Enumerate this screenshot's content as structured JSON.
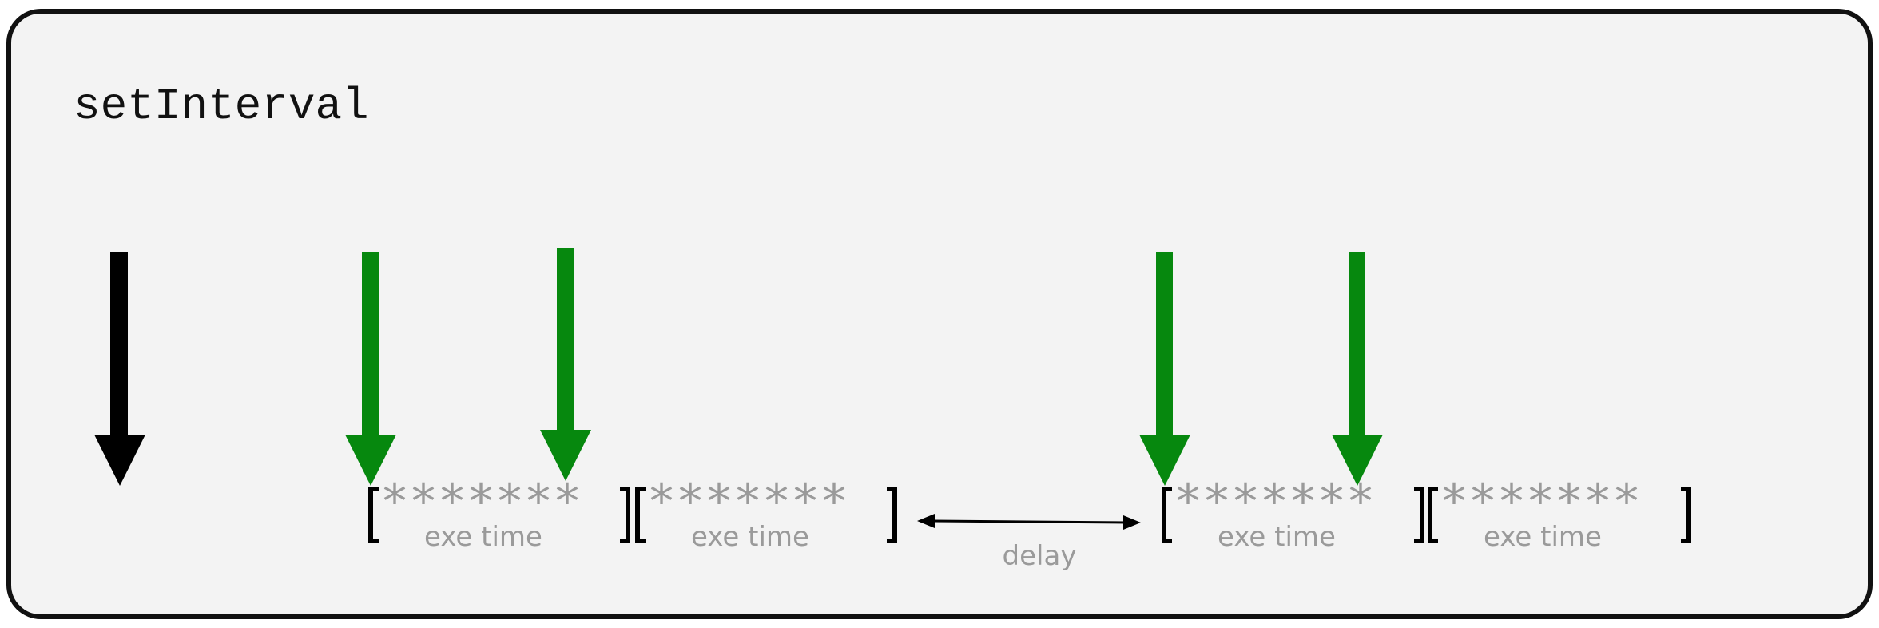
{
  "title": "setInterval",
  "block_stars": "*******",
  "block_label": "exe time",
  "delay_label": "delay",
  "colors": {
    "panel_bg": "#f3f3f3",
    "panel_border": "#111111",
    "green_arrow": "#06880e",
    "black_arrow": "#000000",
    "grey_text": "#9a9a9a",
    "bracket": "#000000"
  }
}
